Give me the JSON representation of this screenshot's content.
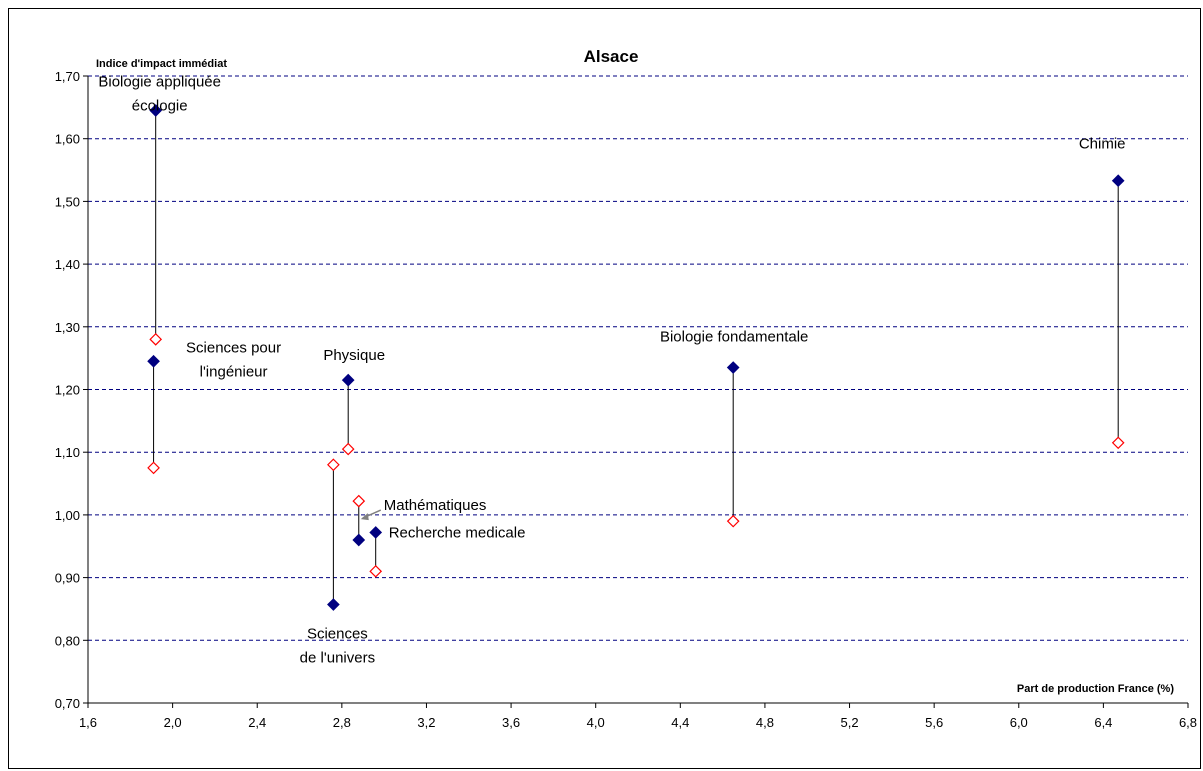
{
  "chart_data": {
    "type": "scatter",
    "title": "Alsace",
    "xlabel": "Part de production France (%)",
    "ylabel": "Indice d'impact immédiat",
    "xlim": [
      1.6,
      6.8
    ],
    "ylim": [
      0.7,
      1.7
    ],
    "x_ticks": [
      "1,6",
      "2,0",
      "2,4",
      "2,8",
      "3,2",
      "3,6",
      "4,0",
      "4,4",
      "4,8",
      "5,2",
      "5,6",
      "6,0",
      "6,4",
      "6,8"
    ],
    "y_ticks": [
      "0,70",
      "0,80",
      "0,90",
      "1,00",
      "1,10",
      "1,20",
      "1,30",
      "1,40",
      "1,50",
      "1,60",
      "1,70"
    ],
    "grid": "horizontal dashed",
    "colors": {
      "filled": "#000080",
      "open": "#ff0000",
      "grid": "#000080",
      "connector": "#000000"
    },
    "points": [
      {
        "label_lines": [
          "Biologie appliquée",
          "écologie"
        ],
        "x": 1.92,
        "y_filled": 1.645,
        "y_open": 1.28
      },
      {
        "label_lines": [
          "Sciences pour",
          "l'ingénieur"
        ],
        "x": 1.91,
        "y_filled": 1.245,
        "y_open": 1.075
      },
      {
        "label_lines": [
          "Physique"
        ],
        "x": 2.83,
        "y_filled": 1.215,
        "y_open": 1.105
      },
      {
        "label_lines": [
          "Sciences",
          "de l'univers"
        ],
        "x": 2.76,
        "y_filled": 0.857,
        "y_open": 1.08
      },
      {
        "label_lines": [
          "Mathématiques"
        ],
        "x": 2.88,
        "y_filled": 0.96,
        "y_open": 1.022
      },
      {
        "label_lines": [
          "Recherche medicale"
        ],
        "x": 2.96,
        "y_filled": 0.972,
        "y_open": 0.91
      },
      {
        "label_lines": [
          "Biologie fondamentale"
        ],
        "x": 4.65,
        "y_filled": 1.235,
        "y_open": 0.99
      },
      {
        "label_lines": [
          "Chimie"
        ],
        "x": 6.47,
        "y_filled": 1.533,
        "y_open": 1.115
      }
    ]
  }
}
